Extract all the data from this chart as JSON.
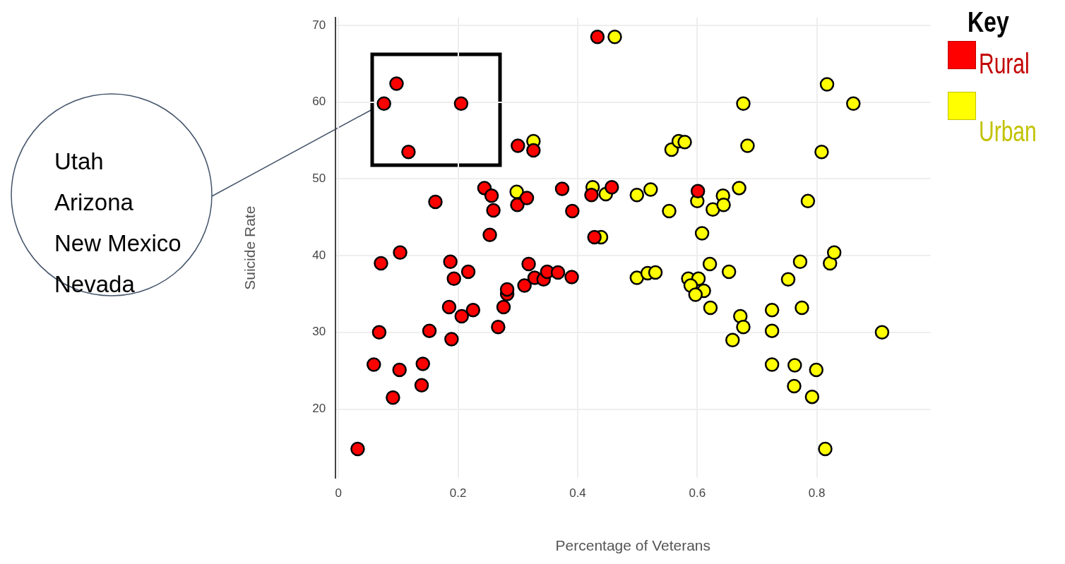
{
  "chart_data": {
    "type": "scatter",
    "xlabel": "Percentage of Veterans",
    "ylabel": "Suicide Rate",
    "legend_title": "Key",
    "legend": "top right",
    "grid": true,
    "marker": "circle",
    "xlim": [
      -0.005,
      0.99
    ],
    "ylim": [
      11,
      71
    ],
    "xticks": [
      0,
      0.2,
      0.4,
      0.6,
      0.8
    ],
    "yticks": [
      20,
      30,
      40,
      50,
      60,
      70
    ],
    "annotations": [
      "Utah\nArizona\nNew Mexico\nNevada"
    ],
    "series": [
      {
        "name": "Rural",
        "color": "#ff0000",
        "x": [
          0.032,
          0.059,
          0.068,
          0.071,
          0.091,
          0.102,
          0.103,
          0.141,
          0.139,
          0.152,
          0.162,
          0.185,
          0.187,
          0.189,
          0.193,
          0.217,
          0.225,
          0.206,
          0.253,
          0.259,
          0.244,
          0.256,
          0.276,
          0.267,
          0.282,
          0.282,
          0.299,
          0.315,
          0.311,
          0.318,
          0.3,
          0.326,
          0.328,
          0.343,
          0.349,
          0.367,
          0.374,
          0.39,
          0.391,
          0.423,
          0.428,
          0.433,
          0.457,
          0.601,
          0.097,
          0.076,
          0.205,
          0.117
        ],
        "values": [
          14.8,
          25.8,
          30.0,
          39.0,
          21.5,
          25.1,
          40.4,
          25.9,
          23.1,
          30.2,
          47.0,
          33.3,
          39.2,
          29.1,
          37.0,
          37.9,
          32.9,
          32.1,
          42.7,
          45.9,
          48.8,
          47.8,
          33.3,
          30.7,
          35.0,
          35.6,
          46.6,
          47.5,
          36.1,
          38.9,
          54.3,
          53.7,
          37.1,
          36.9,
          37.9,
          37.8,
          48.7,
          37.2,
          45.8,
          47.9,
          42.4,
          68.5,
          48.9,
          48.4,
          62.4,
          59.8,
          59.8,
          53.5
        ]
      },
      {
        "name": "Urban",
        "color": "#ffff00",
        "x": [
          0.298,
          0.326,
          0.462,
          0.425,
          0.447,
          0.439,
          0.499,
          0.499,
          0.522,
          0.553,
          0.517,
          0.53,
          0.585,
          0.602,
          0.589,
          0.611,
          0.597,
          0.6,
          0.608,
          0.621,
          0.622,
          0.626,
          0.643,
          0.644,
          0.653,
          0.659,
          0.67,
          0.672,
          0.677,
          0.677,
          0.684,
          0.557,
          0.569,
          0.579,
          0.725,
          0.725,
          0.725,
          0.752,
          0.762,
          0.763,
          0.772,
          0.775,
          0.785,
          0.792,
          0.799,
          0.808,
          0.814,
          0.817,
          0.822,
          0.829,
          0.861,
          0.909
        ],
        "values": [
          48.3,
          54.9,
          68.5,
          48.9,
          48.0,
          42.4,
          47.9,
          37.1,
          48.6,
          45.8,
          37.7,
          37.8,
          37.0,
          37.0,
          36.1,
          35.4,
          34.9,
          47.1,
          42.9,
          38.9,
          33.2,
          46.0,
          47.8,
          46.6,
          37.9,
          29.0,
          48.8,
          32.1,
          30.7,
          59.8,
          54.3,
          53.8,
          54.9,
          54.8,
          32.9,
          30.2,
          25.8,
          36.9,
          23.0,
          25.7,
          39.2,
          33.2,
          47.1,
          21.6,
          25.1,
          53.5,
          14.8,
          62.3,
          39.0,
          40.4,
          59.8,
          30.0
        ]
      }
    ]
  }
}
